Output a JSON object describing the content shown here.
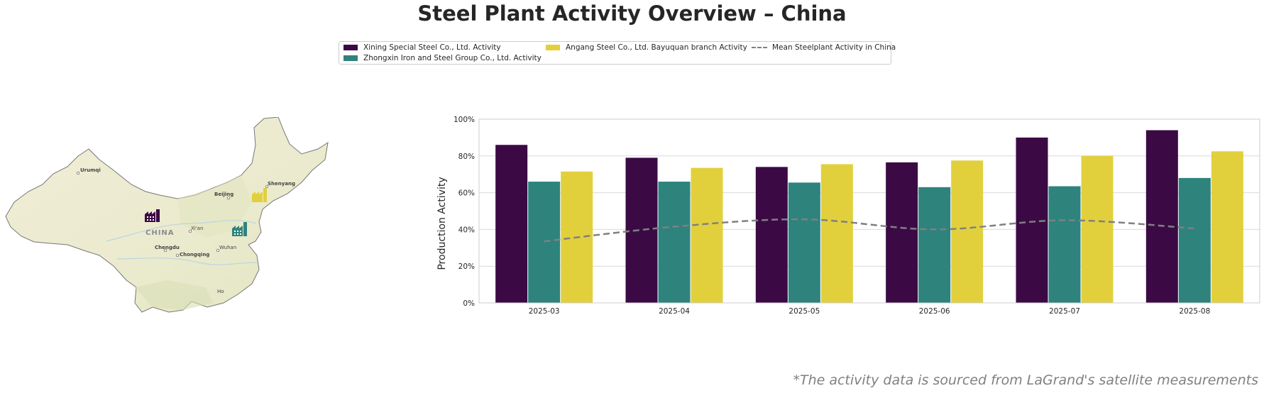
{
  "title": "Steel Plant Activity Overview – China",
  "legend": {
    "items": [
      {
        "label": "Xining Special Steel Co., Ltd. Activity",
        "color": "#3b0a45",
        "kind": "bar"
      },
      {
        "label": "Zhongxin Iron and Steel Group Co., Ltd. Activity",
        "color": "#2e837d",
        "kind": "bar"
      },
      {
        "label": "Angang Steel Co., Ltd. Bayuquan branch Activity",
        "color": "#e1d03c",
        "kind": "bar"
      },
      {
        "label": "Mean Steelplant Activity in China",
        "color": "#808080",
        "kind": "dashed-line"
      }
    ]
  },
  "map": {
    "labels": {
      "country": "CHINA",
      "cities": [
        "Urumqi",
        "Beijing",
        "Shenyang",
        "Xi'an",
        "Chengdu",
        "Chongqing",
        "Wuhan",
        "Ho"
      ]
    },
    "plant_icons": [
      {
        "plant": "Xining Special Steel Co., Ltd.",
        "color": "#3b0a45",
        "icon": "factory-icon"
      },
      {
        "plant": "Zhongxin Iron and Steel Group Co., Ltd.",
        "color": "#2e837d",
        "icon": "factory-icon"
      },
      {
        "plant": "Angang Steel Co., Ltd. Bayuquan branch",
        "color": "#e1d03c",
        "icon": "factory-icon"
      }
    ]
  },
  "chart_data": {
    "type": "bar",
    "categories": [
      "2025-03",
      "2025-04",
      "2025-05",
      "2025-06",
      "2025-07",
      "2025-08"
    ],
    "series": [
      {
        "name": "Xining Special Steel Co., Ltd. Activity",
        "color": "#3b0a45",
        "values": [
          86,
          79,
          74,
          76.5,
          90,
          94
        ]
      },
      {
        "name": "Zhongxin Iron and Steel Group Co., Ltd. Activity",
        "color": "#2e837d",
        "values": [
          66,
          66,
          65.5,
          63,
          63.5,
          68
        ]
      },
      {
        "name": "Angang Steel Co., Ltd. Bayuquan branch Activity",
        "color": "#e1d03c",
        "values": [
          71.5,
          73.5,
          75.5,
          77.5,
          80,
          82.5
        ]
      }
    ],
    "line": {
      "name": "Mean Steelplant Activity in China",
      "color": "#808080",
      "style": "dashed",
      "values": [
        33.5,
        41.5,
        45.5,
        40,
        45,
        40.5
      ]
    },
    "ylabel": "Production Activity",
    "xlabel": "",
    "ylim": [
      0,
      100
    ],
    "yticks": [
      0,
      20,
      40,
      60,
      80,
      100
    ],
    "ytick_labels": [
      "0%",
      "20%",
      "40%",
      "60%",
      "80%",
      "100%"
    ],
    "grid": true
  },
  "footnote": "*The activity data is sourced from LaGrand's satellite measurements"
}
